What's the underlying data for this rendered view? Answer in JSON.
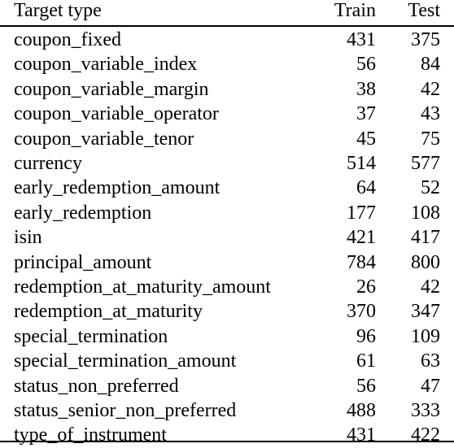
{
  "table": {
    "headers": {
      "target_type": "Target type",
      "train": "Train",
      "test": "Test"
    },
    "rows": [
      {
        "target_type": "coupon_fixed",
        "train": "431",
        "test": "375"
      },
      {
        "target_type": "coupon_variable_index",
        "train": "56",
        "test": "84"
      },
      {
        "target_type": "coupon_variable_margin",
        "train": "38",
        "test": "42"
      },
      {
        "target_type": "coupon_variable_operator",
        "train": "37",
        "test": "43"
      },
      {
        "target_type": "coupon_variable_tenor",
        "train": "45",
        "test": "75"
      },
      {
        "target_type": "currency",
        "train": "514",
        "test": "577"
      },
      {
        "target_type": "early_redemption_amount",
        "train": "64",
        "test": "52"
      },
      {
        "target_type": "early_redemption",
        "train": "177",
        "test": "108"
      },
      {
        "target_type": "isin",
        "train": "421",
        "test": "417"
      },
      {
        "target_type": "principal_amount",
        "train": "784",
        "test": "800"
      },
      {
        "target_type": "redemption_at_maturity_amount",
        "train": "26",
        "test": "42"
      },
      {
        "target_type": "redemption_at_maturity",
        "train": "370",
        "test": "347"
      },
      {
        "target_type": "special_termination",
        "train": "96",
        "test": "109"
      },
      {
        "target_type": "special_termination_amount",
        "train": "61",
        "test": "63"
      },
      {
        "target_type": "status_non_preferred",
        "train": "56",
        "test": "47"
      },
      {
        "target_type": "status_senior_non_preferred",
        "train": "488",
        "test": "333"
      },
      {
        "target_type": "type_of_instrument",
        "train": "431",
        "test": "422"
      }
    ]
  }
}
